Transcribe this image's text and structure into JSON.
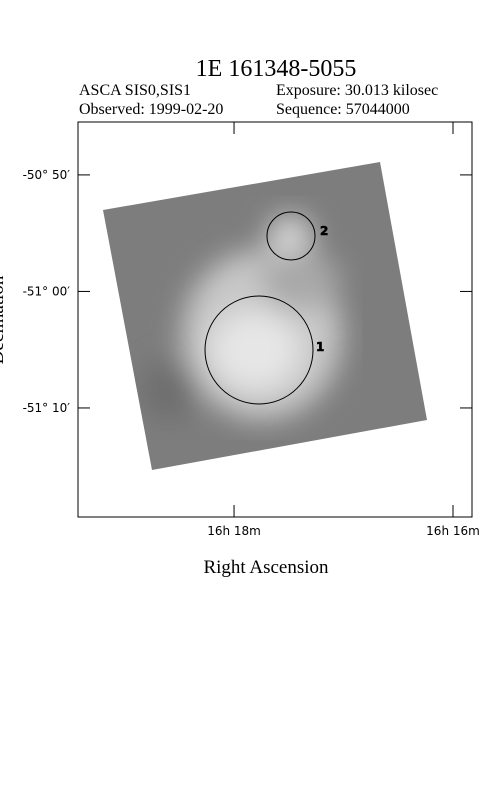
{
  "chart_data": {
    "type": "image",
    "title": "1E 161348-5055",
    "info": [
      "ASCA SIS0,SIS1",
      "Exposure: 30.013 kilosec",
      "Observed: 1999-02-20",
      "Sequence: 57044000"
    ],
    "x_label": "Right Ascension",
    "y_label": "Declination",
    "xlim": [
      16.32375,
      16.26378
    ],
    "xticks": [
      {
        "value": 16.3,
        "label": "16h 18m"
      },
      {
        "value": 16.26667,
        "label": "16h 16m"
      }
    ],
    "ylim": [
      -51.3227,
      -50.7576
    ],
    "yticks": [
      {
        "value": -50.8333,
        "label": "-50° 50′"
      },
      {
        "value": -51.0,
        "label": "-51° 00′"
      },
      {
        "value": -51.1667,
        "label": "-51° 10′"
      }
    ],
    "regions": [
      "1",
      "2"
    ]
  }
}
